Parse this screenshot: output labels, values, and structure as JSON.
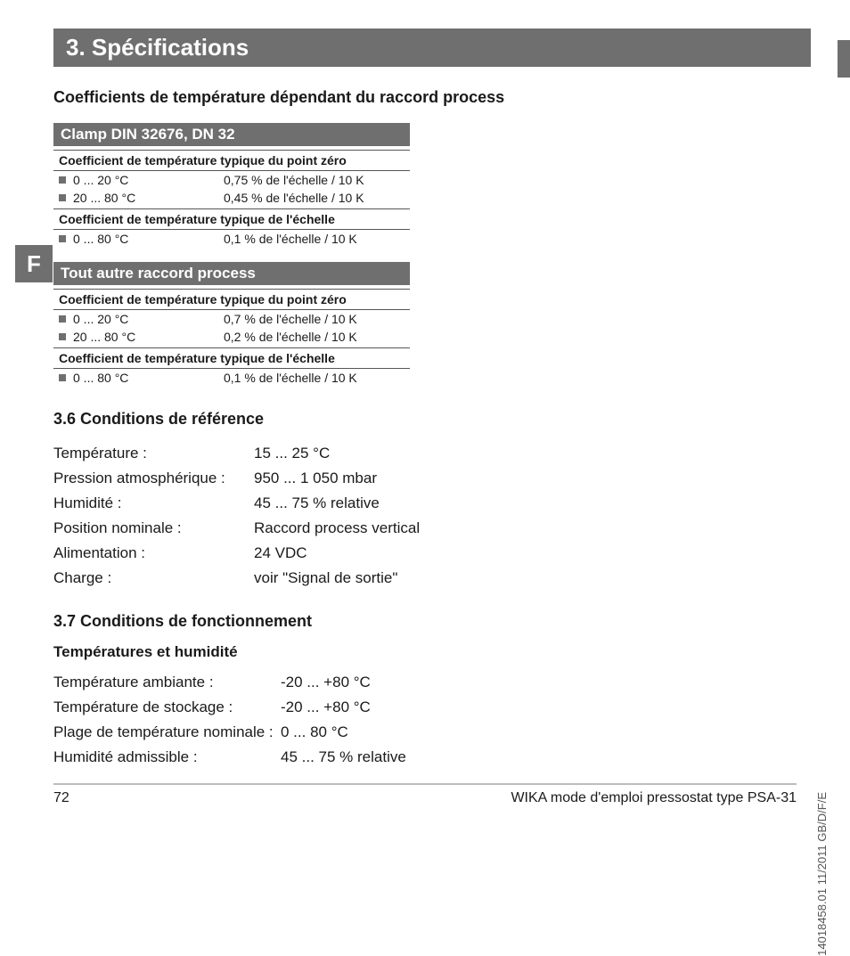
{
  "title_bar": "3. Spécifications",
  "tab_letter": "F",
  "subheading": "Coefficients de température dépendant du raccord process",
  "block1": {
    "header": "Clamp DIN 32676, DN 32",
    "group1_title": "Coefficient de température typique du point zéro",
    "group1_rows": [
      {
        "range": "0 ... 20 °C",
        "value": "0,75 % de l'échelle / 10 K"
      },
      {
        "range": "20 ... 80 °C",
        "value": "0,45 % de l'échelle / 10 K"
      }
    ],
    "group2_title": "Coefficient de température typique de l'échelle",
    "group2_rows": [
      {
        "range": "0 ... 80 °C",
        "value": "0,1 % de l'échelle / 10 K"
      }
    ]
  },
  "block2": {
    "header": "Tout autre raccord process",
    "group1_title": "Coefficient de température typique du point zéro",
    "group1_rows": [
      {
        "range": "0 ... 20 °C",
        "value": "0,7 % de l'échelle / 10 K"
      },
      {
        "range": "20 ... 80 °C",
        "value": "0,2 % de l'échelle / 10 K"
      }
    ],
    "group2_title": "Coefficient de température typique de l'échelle",
    "group2_rows": [
      {
        "range": "0 ... 80 °C",
        "value": "0,1 % de l'échelle / 10 K"
      }
    ]
  },
  "section36": {
    "title": "3.6 Conditions de référence",
    "rows": [
      {
        "label": "Température :",
        "value": "15 ... 25 °C"
      },
      {
        "label": "Pression atmosphérique :",
        "value": "950 ... 1 050 mbar"
      },
      {
        "label": "Humidité :",
        "value": "45 ... 75 % relative"
      },
      {
        "label": "Position nominale :",
        "value": "Raccord process vertical"
      },
      {
        "label": "Alimentation :",
        "value": "24 VDC"
      },
      {
        "label": "Charge :",
        "value": "voir \"Signal de sortie\""
      }
    ]
  },
  "section37": {
    "title": "3.7 Conditions de fonctionnement",
    "sub": "Températures et humidité",
    "rows": [
      {
        "label": "Température ambiante :",
        "value": "-20 ... +80 °C"
      },
      {
        "label": "Température de stockage :",
        "value": "-20 ... +80 °C"
      },
      {
        "label": "Plage de température nominale :",
        "value": "0 ... 80 °C"
      },
      {
        "label": "Humidité admissible :",
        "value": "45 ... 75 % relative"
      }
    ]
  },
  "footer": {
    "page": "72",
    "doc": "WIKA mode d'emploi pressostat type PSA-31"
  },
  "side_text": "14018458.01 11/2011 GB/D/F/E"
}
